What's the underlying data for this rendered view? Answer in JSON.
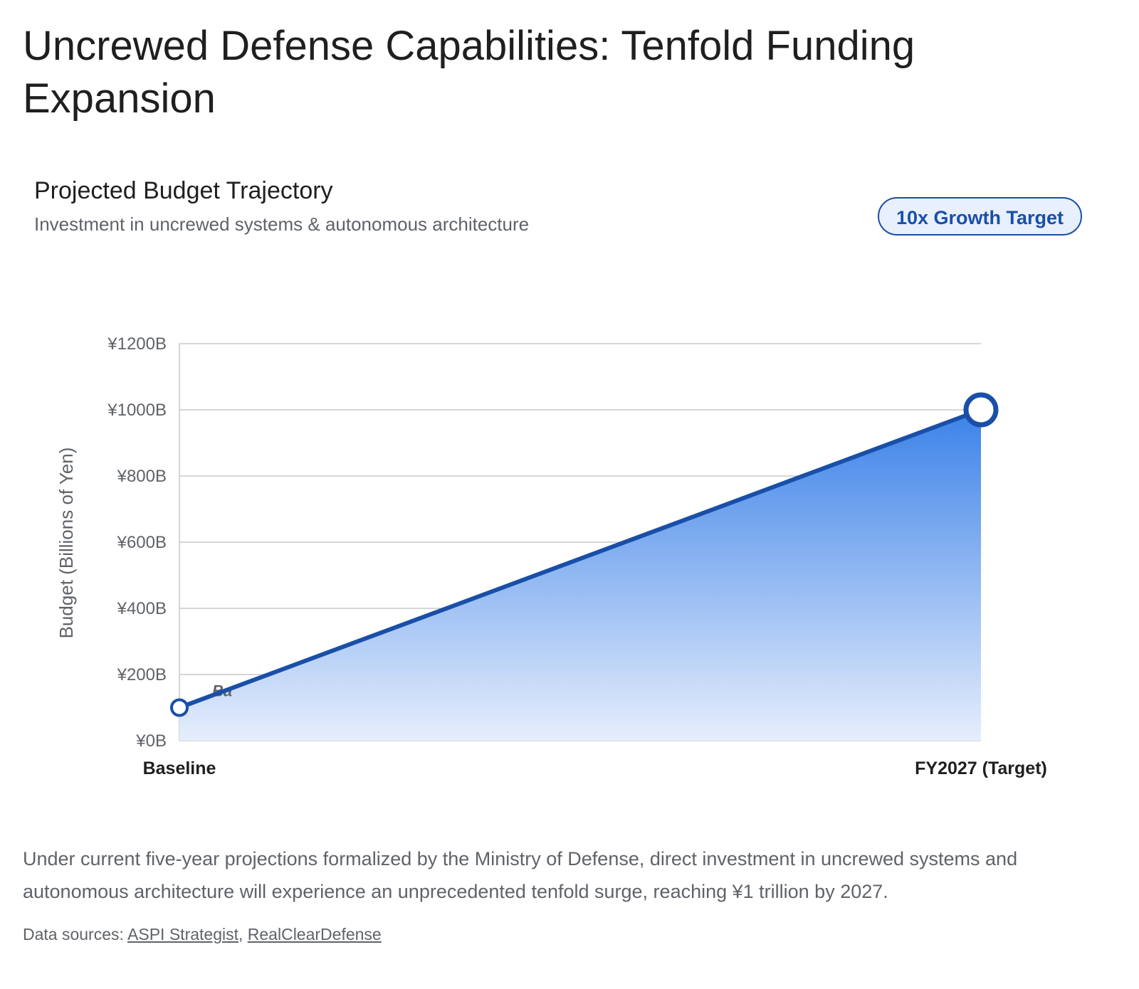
{
  "page": {
    "title": "Uncrewed Defense Capabilities: Tenfold Funding Expansion",
    "card_title": "Projected Budget Trajectory",
    "card_subtitle": "Investment in uncrewed systems & autonomous architecture",
    "badge": "10x Growth Target",
    "description": "Under current five-year projections formalized by the Ministry of Defense, direct investment in uncrewed systems and autonomous architecture will experience an unprecedented tenfold surge, reaching ¥1 trillion by 2027.",
    "sources_prefix": "Data sources: ",
    "sources": [
      "ASPI Strategist",
      "RealClearDefense"
    ],
    "sources_separator": ", "
  },
  "colors": {
    "line": "#1a4fa8",
    "area_top": "#3b82e8",
    "area_bottom": "#e6eefc",
    "badge_border": "#1a4fa8",
    "badge_bg": "#e8f0fe"
  },
  "chart_data": {
    "type": "area",
    "title": "Projected Budget Trajectory",
    "subtitle": "Investment in uncrewed systems & autonomous architecture",
    "categories": [
      "Baseline",
      "FY2027 (Target)"
    ],
    "series": [
      {
        "values": [
          100,
          1000
        ]
      }
    ],
    "xlabel": "",
    "ylabel": "Budget (Billions of Yen)",
    "ylim": [
      0,
      1200
    ],
    "yticks": [
      0,
      200,
      400,
      600,
      800,
      1000,
      1200
    ],
    "ytick_labels": [
      "¥0B",
      "¥200B",
      "¥400B",
      "¥600B",
      "¥800B",
      "¥1000B",
      "¥1200B"
    ],
    "partial_label": "Ba",
    "grid": true,
    "legend": "none"
  }
}
